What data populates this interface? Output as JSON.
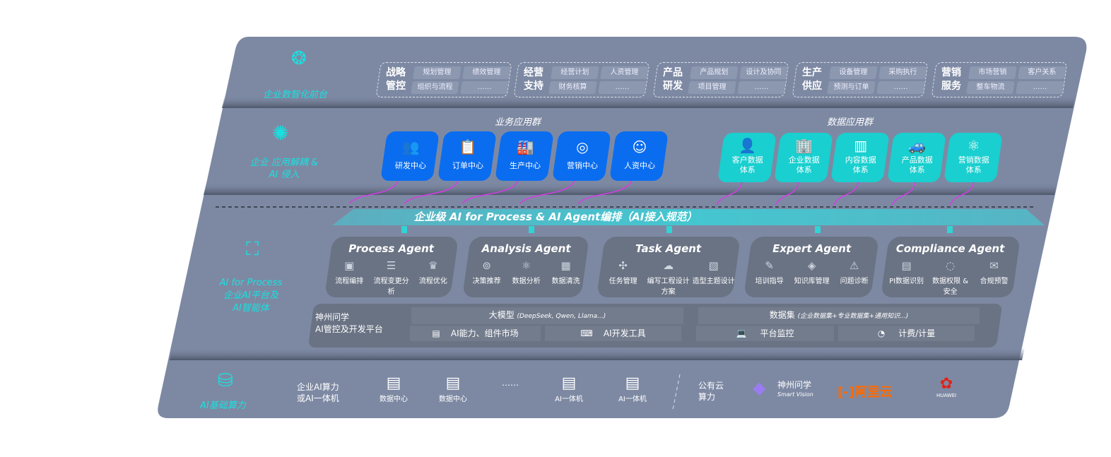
{
  "layers": {
    "front": {
      "label": "企业数智化前台",
      "icon": "brain-icon",
      "groups": [
        {
          "title": "战略管控",
          "items": [
            "规划管理",
            "绩效管理",
            "组织与流程",
            "……"
          ]
        },
        {
          "title": "经营支持",
          "items": [
            "经营计划",
            "人资管理",
            "财务核算",
            "……"
          ]
        },
        {
          "title": "产品研发",
          "items": [
            "产品规划",
            "设计及协同",
            "项目管理",
            "……"
          ]
        },
        {
          "title": "生产供应",
          "items": [
            "设备管理",
            "采购执行",
            "预测与订单",
            "……"
          ]
        },
        {
          "title": "营销服务",
          "items": [
            "市场营销",
            "客户关系",
            "整车物流",
            "……"
          ]
        }
      ]
    },
    "apps": {
      "label": "企业 应用解耦 & AI 侵入",
      "icon": "molecule-icon",
      "business_title": "业务应用群",
      "business": [
        {
          "label": "研发中心",
          "icon": "users-icon"
        },
        {
          "label": "订单中心",
          "icon": "clipboard-icon"
        },
        {
          "label": "生产中心",
          "icon": "factory-icon"
        },
        {
          "label": "营销中心",
          "icon": "target-icon"
        },
        {
          "label": "人资中心",
          "icon": "person-icon"
        }
      ],
      "data_title": "数据应用群",
      "data": [
        {
          "label": "客户数据体系",
          "icon": "user-icon"
        },
        {
          "label": "企业数据体系",
          "icon": "building-icon"
        },
        {
          "label": "内容数据体系",
          "icon": "books-icon"
        },
        {
          "label": "产品数据体系",
          "icon": "car-icon"
        },
        {
          "label": "营销数据体系",
          "icon": "atom-icon"
        }
      ],
      "colors": {
        "business": "#0a6df0",
        "data": "#19cfcf",
        "connector": "#d63ce6"
      }
    },
    "ai": {
      "label1": "AI for Process",
      "label2": "企业AI平台及",
      "label3": "AI智能体",
      "icon": "face-scan-icon",
      "banner": "企业级 AI for Process & AI Agent编排（AI接入规范）",
      "agents": [
        {
          "title": "Process Agent",
          "items": [
            "流程编排",
            "流程变更分析",
            "流程优化"
          ]
        },
        {
          "title": "Analysis Agent",
          "items": [
            "决策推荐",
            "数据分析",
            "数据清洗"
          ]
        },
        {
          "title": "Task Agent",
          "items": [
            "任务管理",
            "编写工程设计方案",
            "造型主题设计"
          ]
        },
        {
          "title": "Expert Agent",
          "items": [
            "培训指导",
            "知识库管理",
            "问题诊断"
          ]
        },
        {
          "title": "Compliance Agent",
          "items": [
            "PI数据识别",
            "数据权限 & 安全",
            "合规预警"
          ]
        }
      ],
      "platform": {
        "title1": "神州问学",
        "title2": "AI管控及开发平台",
        "model": "大模型",
        "model_note": "(DeepSeek, Qwen, Llama...)",
        "market": "AI能力、组件市场",
        "devtools": "AI开发工具",
        "dataset": "数据集",
        "dataset_note": "(企业数据集+专业数据集+通用知识...)",
        "monitor": "平台监控",
        "billing": "计费/计量"
      }
    },
    "infra": {
      "label": "AI基础算力",
      "icon": "database-icon",
      "private1": "企业AI算力",
      "private2": "或AI一体机",
      "servers": [
        "数据中心",
        "数据中心",
        "AI一体机",
        "AI一体机"
      ],
      "ellipsis": "……",
      "public1": "公有云",
      "public2": "算力",
      "vendors": [
        {
          "name": "神州问学",
          "sub": "Smart Vision"
        },
        {
          "name": "阿里云",
          "color": "#ff6a00"
        },
        {
          "name": "HUAWEI",
          "color": "#e32219"
        }
      ]
    }
  }
}
